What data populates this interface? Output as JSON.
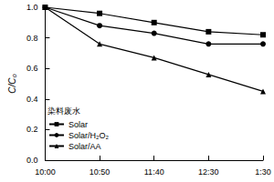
{
  "chart_data": {
    "type": "line",
    "y_label": "C/C₀",
    "legend_title": "染料废水",
    "categories": [
      "10:00",
      "10:50",
      "11:40",
      "12:30",
      "1:30"
    ],
    "series": [
      {
        "name": "Solar",
        "color": "#000000",
        "marker": "square",
        "values": [
          1.0,
          0.96,
          0.9,
          0.84,
          0.82
        ]
      },
      {
        "name": "Solar/H₂O₂",
        "color": "#000000",
        "marker": "circle",
        "values": [
          1.0,
          0.88,
          0.83,
          0.76,
          0.76
        ]
      },
      {
        "name": "Solar/AA",
        "color": "#000000",
        "marker": "triangle",
        "values": [
          1.0,
          0.76,
          0.67,
          0.56,
          0.45
        ]
      }
    ],
    "ylim": [
      0,
      1.0
    ],
    "yticks": [
      {
        "value": 0,
        "label": "0.0"
      },
      0.2,
      0.4,
      0.6,
      0.8,
      {
        "value": 1.0,
        "label": "1.0"
      }
    ],
    "grid": false,
    "legend": "lower left"
  }
}
